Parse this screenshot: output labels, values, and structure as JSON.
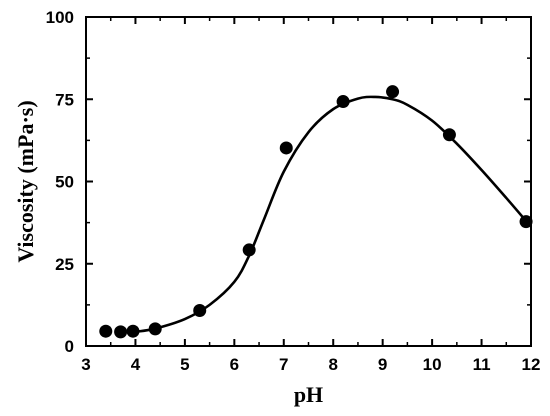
{
  "chart_data": {
    "type": "scatter",
    "xlabel": "pH",
    "ylabel": "Viscosity (mPa·s)",
    "xlim": [
      3,
      12
    ],
    "ylim": [
      0,
      100
    ],
    "xticks": [
      3,
      4,
      5,
      6,
      7,
      8,
      9,
      10,
      11,
      12
    ],
    "yticks": [
      0,
      25,
      50,
      75,
      100
    ],
    "grid": false,
    "legend": "none",
    "colors": {
      "marker": "#000000",
      "line": "#000000",
      "axis": "#000000"
    },
    "series": [
      {
        "style": "markers",
        "x": [
          3.4,
          3.7,
          3.95,
          4.4,
          5.3,
          6.3,
          7.05,
          8.2,
          9.2,
          10.35,
          11.9
        ],
        "y": [
          4.5,
          4.3,
          4.5,
          5.2,
          10.8,
          29.2,
          60.2,
          74.3,
          77.3,
          64.2,
          37.8
        ]
      },
      {
        "style": "line",
        "x": [
          4.0,
          4.4,
          5.0,
          5.5,
          6.0,
          6.3,
          6.6,
          7.0,
          7.5,
          8.0,
          8.5,
          8.85,
          9.2,
          9.5,
          10.0,
          10.5,
          11.0,
          11.5,
          11.9
        ],
        "y": [
          4.3,
          5.3,
          8.2,
          12.5,
          19.5,
          27.5,
          38.5,
          53.0,
          65.0,
          72.0,
          75.2,
          75.7,
          75.0,
          73.3,
          68.5,
          61.5,
          53.5,
          45.0,
          38.0
        ]
      }
    ]
  }
}
